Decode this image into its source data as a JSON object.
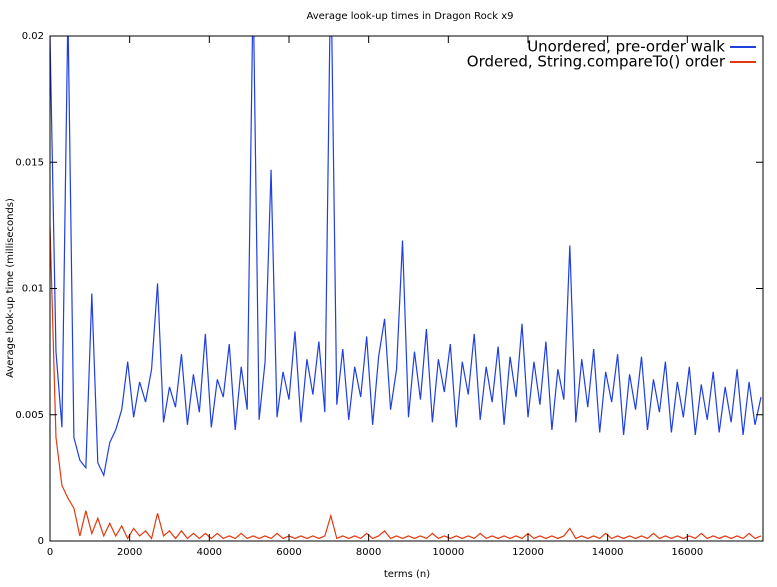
{
  "chart_data": {
    "type": "line",
    "title": "Average look-up times in Dragon Rock x9",
    "x_label": "terms (n)",
    "y_label": "Average look-up time (milliseconds)",
    "xlim": [
      0,
      17900
    ],
    "ylim": [
      0,
      0.02
    ],
    "xticks": [
      0,
      2000,
      4000,
      6000,
      8000,
      10000,
      12000,
      14000,
      16000
    ],
    "yticks": [
      0,
      0.005,
      0.01,
      0.015,
      0.02
    ],
    "grid": false,
    "legend_position": "top-right",
    "x": [
      0,
      150,
      300,
      450,
      600,
      750,
      900,
      1050,
      1200,
      1350,
      1500,
      1650,
      1800,
      1950,
      2100,
      2250,
      2400,
      2550,
      2700,
      2850,
      3000,
      3150,
      3300,
      3450,
      3600,
      3750,
      3900,
      4050,
      4200,
      4350,
      4500,
      4650,
      4800,
      4950,
      5100,
      5250,
      5400,
      5550,
      5700,
      5850,
      6000,
      6150,
      6300,
      6450,
      6600,
      6750,
      6900,
      7050,
      7200,
      7350,
      7500,
      7650,
      7800,
      7950,
      8100,
      8250,
      8400,
      8550,
      8700,
      8850,
      9000,
      9150,
      9300,
      9450,
      9600,
      9750,
      9900,
      10050,
      10200,
      10350,
      10500,
      10650,
      10800,
      10950,
      11100,
      11250,
      11400,
      11550,
      11700,
      11850,
      12000,
      12150,
      12300,
      12450,
      12600,
      12750,
      12900,
      13050,
      13200,
      13350,
      13500,
      13650,
      13800,
      13950,
      14100,
      14250,
      14400,
      14550,
      14700,
      14850,
      15000,
      15150,
      15300,
      15450,
      15600,
      15750,
      15900,
      16050,
      16200,
      16350,
      16500,
      16650,
      16800,
      16950,
      17100,
      17250,
      17400,
      17550,
      17700,
      17850
    ],
    "series": [
      {
        "name": "Unordered, pre-order walk",
        "color": "#1f3fe0",
        "values": [
          0.02,
          0.0075,
          0.0045,
          0.021,
          0.0041,
          0.0032,
          0.0029,
          0.0098,
          0.0031,
          0.0026,
          0.0039,
          0.0044,
          0.0052,
          0.0071,
          0.0049,
          0.0063,
          0.0055,
          0.0068,
          0.0102,
          0.0047,
          0.0061,
          0.0053,
          0.0074,
          0.0046,
          0.0066,
          0.0051,
          0.0082,
          0.0045,
          0.0064,
          0.0057,
          0.0078,
          0.0044,
          0.0069,
          0.0052,
          0.022,
          0.0048,
          0.0071,
          0.0147,
          0.0049,
          0.0067,
          0.0056,
          0.0083,
          0.0047,
          0.0072,
          0.0058,
          0.0079,
          0.0051,
          0.023,
          0.0054,
          0.0076,
          0.0048,
          0.0069,
          0.0057,
          0.0081,
          0.0046,
          0.0073,
          0.0088,
          0.0052,
          0.0068,
          0.0119,
          0.0049,
          0.0075,
          0.0056,
          0.0084,
          0.0047,
          0.0072,
          0.0059,
          0.0078,
          0.0045,
          0.0071,
          0.0058,
          0.0082,
          0.0048,
          0.0069,
          0.0055,
          0.0077,
          0.0046,
          0.0073,
          0.0057,
          0.0086,
          0.0049,
          0.0071,
          0.0054,
          0.0079,
          0.0044,
          0.0068,
          0.0056,
          0.0117,
          0.0047,
          0.0072,
          0.0053,
          0.0076,
          0.0043,
          0.0067,
          0.0055,
          0.0074,
          0.0042,
          0.0066,
          0.0052,
          0.0073,
          0.0044,
          0.0064,
          0.0051,
          0.0071,
          0.0043,
          0.0063,
          0.0049,
          0.0069,
          0.0042,
          0.0062,
          0.0048,
          0.0067,
          0.0043,
          0.0061,
          0.0047,
          0.0068,
          0.0042,
          0.0063,
          0.0046,
          0.0057
        ]
      },
      {
        "name": "Ordered, String.compareTo() order",
        "color": "#e03a10",
        "values": [
          0.0125,
          0.0041,
          0.0022,
          0.0017,
          0.0013,
          0.0002,
          0.0012,
          0.0003,
          0.0009,
          0.0002,
          0.0007,
          0.0002,
          0.0006,
          0.0001,
          0.0005,
          0.0002,
          0.0004,
          0.0001,
          0.0011,
          0.0002,
          0.0004,
          0.0001,
          0.0004,
          0.0001,
          0.0003,
          0.0001,
          0.0003,
          0.0001,
          0.0003,
          0.0001,
          0.0002,
          0.0001,
          0.0003,
          0.0001,
          0.0002,
          0.0001,
          0.0002,
          0.0001,
          0.0003,
          0.0001,
          0.0002,
          0.0001,
          0.0002,
          0.0001,
          0.0002,
          0.0001,
          0.0002,
          0.001,
          0.0001,
          0.0002,
          0.0001,
          0.0002,
          0.0001,
          0.0003,
          0.0001,
          0.0002,
          0.0004,
          0.0001,
          0.0002,
          0.0001,
          0.0002,
          0.0001,
          0.0002,
          0.0001,
          0.0003,
          0.0001,
          0.0002,
          0.0001,
          0.0002,
          0.0001,
          0.0002,
          0.0001,
          0.0003,
          0.0001,
          0.0002,
          0.0001,
          0.0002,
          0.0001,
          0.0002,
          0.0001,
          0.0003,
          0.0001,
          0.0002,
          0.0001,
          0.0002,
          0.0001,
          0.0002,
          0.0005,
          0.0001,
          0.0002,
          0.0001,
          0.0002,
          0.0001,
          0.0003,
          0.0001,
          0.0002,
          0.0001,
          0.0002,
          0.0001,
          0.0002,
          0.0001,
          0.0003,
          0.0001,
          0.0002,
          0.0001,
          0.0002,
          0.0001,
          0.0002,
          0.0001,
          0.0003,
          0.0001,
          0.0002,
          0.0001,
          0.0002,
          0.0001,
          0.0002,
          0.0001,
          0.0003,
          0.0001,
          0.0002
        ]
      }
    ]
  }
}
